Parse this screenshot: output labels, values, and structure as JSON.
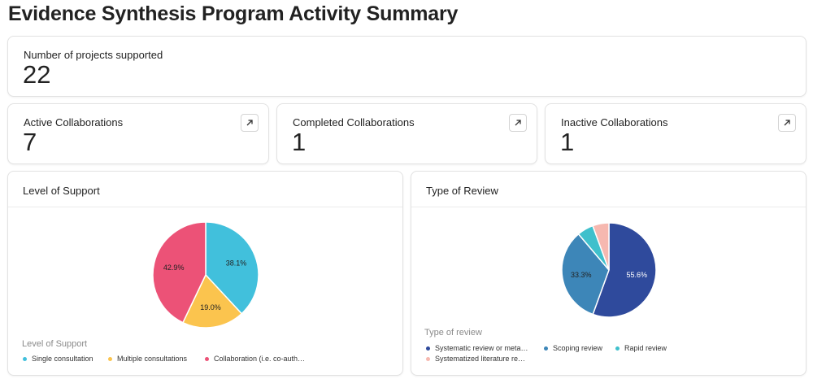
{
  "page": {
    "title": "Evidence Synthesis Program Activity Summary"
  },
  "summary": {
    "label": "Number of projects supported",
    "value": "22"
  },
  "stats": [
    {
      "label": "Active Collaborations",
      "value": "7"
    },
    {
      "label": "Completed Collaborations",
      "value": "1"
    },
    {
      "label": "Inactive Collaborations",
      "value": "1"
    }
  ],
  "colors": {
    "single": "#41c0dc",
    "multiple": "#fbc44e",
    "collab": "#ec5277",
    "systematic": "#2f4a9c",
    "scoping": "#3d86b8",
    "rapid": "#3fc0cc",
    "systematized": "#f6b8b0"
  },
  "chart_data": [
    {
      "type": "pie",
      "title": "Level of Support",
      "legend_title": "Level of Support",
      "categories": [
        "Single consultation",
        "Multiple consultations",
        "Collaboration (i.e. co-auth…"
      ],
      "values": [
        38.1,
        19.0,
        42.9
      ],
      "data_labels": [
        "38.1%",
        "19.0%",
        "42.9%"
      ],
      "colors": [
        "#41c0dc",
        "#fbc44e",
        "#ec5277"
      ],
      "legend_position": "bottom-left"
    },
    {
      "type": "pie",
      "title": "Type of Review",
      "legend_title": "Type of review",
      "categories": [
        "Systematic review or meta…",
        "Scoping review",
        "Rapid review",
        "Systematized literature re…"
      ],
      "values": [
        55.6,
        33.3,
        5.6,
        5.6
      ],
      "data_labels": [
        "55.6%",
        "33.3%",
        "",
        ""
      ],
      "colors": [
        "#2f4a9c",
        "#3d86b8",
        "#3fc0cc",
        "#f6b8b0"
      ],
      "legend_position": "bottom-left"
    }
  ]
}
